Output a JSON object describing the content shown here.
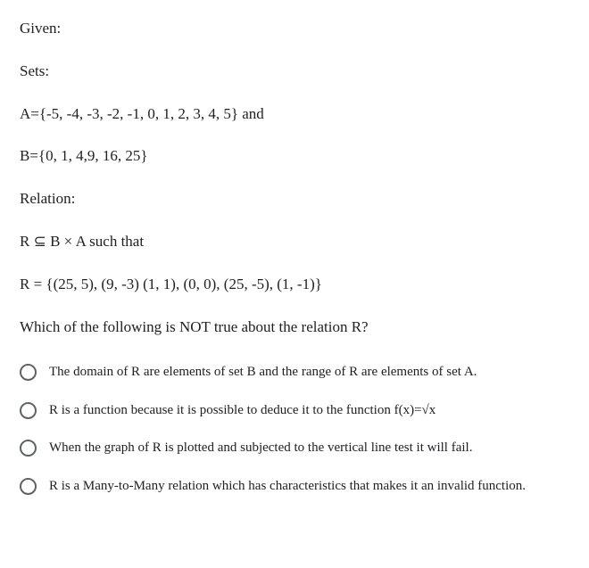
{
  "question": {
    "lines": [
      "Given:",
      "Sets:",
      "A={-5, -4, -3, -2, -1, 0, 1, 2, 3, 4, 5}  and",
      "B={0, 1, 4,9, 16, 25}",
      "Relation:",
      "R ⊆ B × A  such that",
      "R = {(25, 5), (9, -3) (1, 1), (0, 0),  (25, -5), (1, -1)}",
      "Which of the following is NOT true about the relation R?"
    ]
  },
  "options": [
    {
      "text": "The domain of R are elements of set B and the range of R are elements of set A."
    },
    {
      "text": "R is a function because it is possible to deduce it to the function f(x)=√x"
    },
    {
      "text": "When the graph of R is plotted and subjected to the vertical line test it will fail."
    },
    {
      "text": "R is a Many-to-Many relation which has characteristics that makes it an invalid function."
    }
  ],
  "style": {
    "text_color": "#202124",
    "radio_border_color": "#5f6368",
    "background_color": "#ffffff",
    "question_fontsize": 17,
    "option_fontsize": 15
  }
}
